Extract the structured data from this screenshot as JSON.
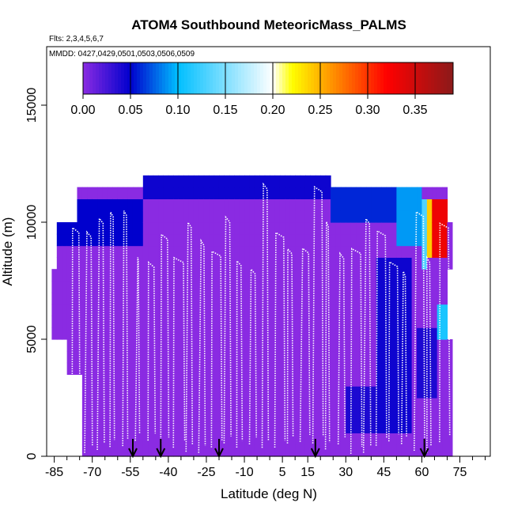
{
  "chart_data": {
    "type": "heatmap",
    "title": "ATOM4 Southbound MeteoricMass_PALMS",
    "subtitle_flights": "Flts: 2,3,4,5,6,7",
    "subtitle_dates": "MMDD: 0427,0429,0501,0503,0506,0509",
    "xlabel": "Latitude (deg N)",
    "ylabel": "Altitude (m)",
    "xlim": [
      -88,
      87
    ],
    "ylim": [
      0,
      17500
    ],
    "x_ticks": [
      -85,
      -70,
      -55,
      -40,
      -25,
      -10,
      5,
      15,
      30,
      45,
      60,
      75
    ],
    "x_minor_ticks": [
      -80,
      -75,
      -65,
      -60,
      -50,
      -45,
      -35,
      -30,
      -20,
      -15,
      -5,
      0,
      10,
      20,
      25,
      35,
      40,
      50,
      55,
      65,
      70,
      80,
      85
    ],
    "y_ticks": [
      0,
      5000,
      10000,
      15000
    ],
    "colorbar": {
      "min": 0.0,
      "max": 0.39,
      "ticks": [
        "0.00",
        "0.05",
        "0.10",
        "0.15",
        "0.20",
        "0.25",
        "0.30",
        "0.35"
      ],
      "tick_values": [
        0.0,
        0.05,
        0.1,
        0.15,
        0.2,
        0.25,
        0.3,
        0.35
      ],
      "colors": [
        "#8a2be2",
        "#0000cd",
        "#00bfff",
        "#ffffff",
        "#ffff00",
        "#ff7f00",
        "#ff0000",
        "#8b1a1a"
      ],
      "color_stops": [
        0.0,
        0.05,
        0.1,
        0.2,
        0.22,
        0.27,
        0.32,
        0.39
      ]
    },
    "arrow_latitudes": [
      -54,
      -43,
      -20,
      18,
      61
    ],
    "grid_cells": {
      "lat_step": 2,
      "alt_step": 500,
      "description_rows": [
        {
          "alt_min": 0,
          "alt_max": 3500,
          "lat_min": -74,
          "lat_max": 72
        },
        {
          "alt_min": 3500,
          "alt_max": 5000,
          "lat_min": -80,
          "lat_max": 72
        },
        {
          "alt_min": 5000,
          "alt_max": 8000,
          "lat_min": -86,
          "lat_max": 71
        },
        {
          "alt_min": 8000,
          "alt_max": 10000,
          "lat_min": -84,
          "lat_max": 72
        },
        {
          "alt_min": 10000,
          "alt_max": 11500,
          "lat_min": -76,
          "lat_max": 71
        },
        {
          "alt_min": 11500,
          "alt_max": 12000,
          "lat_min": -50,
          "lat_max": 24
        }
      ],
      "hotspots": [
        {
          "lat_min": 64,
          "lat_max": 70,
          "alt_min": 8500,
          "alt_max": 11000,
          "value": 0.33
        },
        {
          "lat_min": 62,
          "lat_max": 64,
          "alt_min": 8500,
          "alt_max": 11000,
          "value": 0.24
        },
        {
          "lat_min": 60,
          "lat_max": 62,
          "alt_min": 8000,
          "alt_max": 11000,
          "value": 0.13
        },
        {
          "lat_min": 50,
          "lat_max": 60,
          "alt_min": 9000,
          "alt_max": 11500,
          "value": 0.09
        },
        {
          "lat_min": 25,
          "lat_max": 50,
          "alt_min": 10000,
          "alt_max": 12000,
          "value": 0.06
        },
        {
          "lat_min": -50,
          "lat_max": 24,
          "alt_min": 11000,
          "alt_max": 12000,
          "value": 0.045
        },
        {
          "lat_min": -84,
          "lat_max": -50,
          "alt_min": 9000,
          "alt_max": 11000,
          "value": 0.05
        },
        {
          "lat_min": 42,
          "lat_max": 56,
          "alt_min": 1000,
          "alt_max": 8500,
          "value": 0.045
        },
        {
          "lat_min": 30,
          "lat_max": 42,
          "alt_min": 1000,
          "alt_max": 3000,
          "value": 0.04
        },
        {
          "lat_min": 66,
          "lat_max": 70,
          "alt_min": 5000,
          "alt_max": 6500,
          "value": 0.11
        },
        {
          "lat_min": 58,
          "lat_max": 66,
          "alt_min": 2500,
          "alt_max": 5500,
          "value": 0.04
        }
      ]
    }
  }
}
